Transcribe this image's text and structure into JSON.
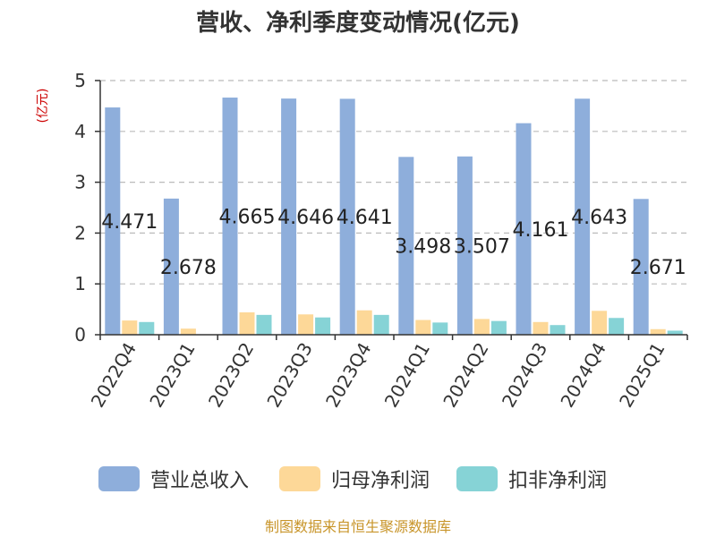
{
  "chart_data": {
    "type": "bar",
    "title": "营收、净利季度变动情况(亿元)",
    "unit_label": "(亿元)",
    "categories": [
      "2022Q4",
      "2023Q1",
      "2023Q2",
      "2023Q3",
      "2023Q4",
      "2024Q1",
      "2024Q2",
      "2024Q3",
      "2024Q4",
      "2025Q1"
    ],
    "series": [
      {
        "name": "营业总收入",
        "color": "#8eaedb",
        "values": [
          4.471,
          2.678,
          4.665,
          4.646,
          4.641,
          3.498,
          3.507,
          4.161,
          4.643,
          2.671
        ]
      },
      {
        "name": "归母净利润",
        "color": "#fdd898",
        "values": [
          0.28,
          0.12,
          0.44,
          0.4,
          0.48,
          0.29,
          0.31,
          0.25,
          0.47,
          0.11
        ]
      },
      {
        "name": "扣非净利润",
        "color": "#86d3d6",
        "values": [
          0.25,
          0.0,
          0.39,
          0.34,
          0.39,
          0.24,
          0.27,
          0.19,
          0.33,
          0.08
        ]
      }
    ],
    "data_labels": [
      "4.471",
      "2.678",
      "4.665",
      "4.646",
      "4.641",
      "3.498",
      "3.507",
      "4.161",
      "4.643",
      "2.671"
    ],
    "ylim": [
      0,
      5
    ],
    "yticks": [
      "0",
      "1",
      "2",
      "3",
      "4",
      "5"
    ],
    "grid": true,
    "legend_position": "bottom"
  },
  "source": "制图数据来自恒生聚源数据库"
}
